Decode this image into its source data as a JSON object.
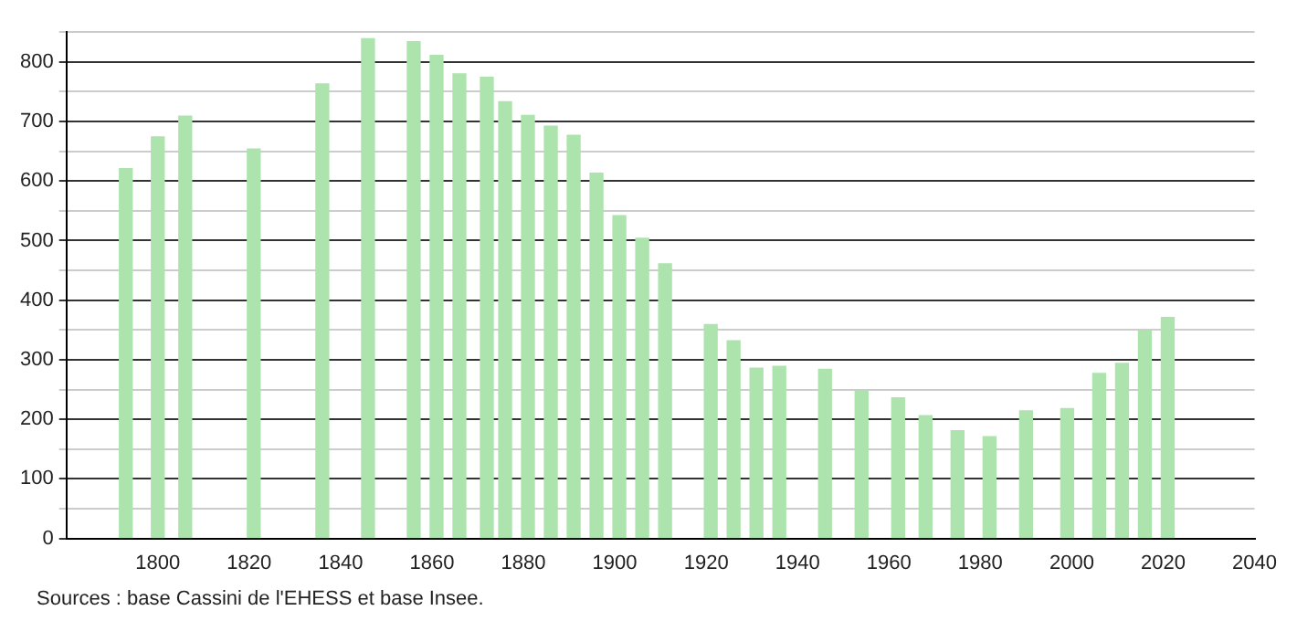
{
  "chart_data": {
    "type": "bar",
    "x": [
      1793,
      1800,
      1806,
      1821,
      1836,
      1846,
      1856,
      1861,
      1866,
      1872,
      1876,
      1881,
      1886,
      1891,
      1896,
      1901,
      1906,
      1911,
      1921,
      1926,
      1931,
      1936,
      1946,
      1954,
      1962,
      1968,
      1975,
      1982,
      1990,
      1999,
      2006,
      2011,
      2016,
      2021
    ],
    "values": [
      621,
      674,
      709,
      654,
      763,
      839,
      834,
      811,
      780,
      774,
      733,
      710,
      692,
      677,
      613,
      542,
      504,
      461,
      359,
      332,
      286,
      289,
      284,
      248,
      236,
      206,
      181,
      171,
      214,
      218,
      277,
      294,
      348,
      371
    ],
    "color": "#ade3ad",
    "xlim": [
      1780,
      2040
    ],
    "xticks": [
      1800,
      1820,
      1840,
      1860,
      1880,
      1900,
      1920,
      1940,
      1960,
      1980,
      2000,
      2020,
      2040
    ],
    "ylim": [
      0,
      850
    ],
    "yticks": [
      0,
      {
        "value": 50,
        "label": null
      },
      100,
      {
        "value": 150,
        "label": null
      },
      200,
      {
        "value": 250,
        "label": null
      },
      300,
      {
        "value": 350,
        "label": null
      },
      400,
      {
        "value": 450,
        "label": null
      },
      500,
      {
        "value": 550,
        "label": null
      },
      600,
      {
        "value": 650,
        "label": null
      },
      700,
      {
        "value": 750,
        "label": null
      },
      800,
      {
        "value": 850,
        "label": null
      }
    ],
    "grid": "y",
    "annotations": [
      "Sources : base Cassini de l'EHESS et base Insee."
    ]
  }
}
